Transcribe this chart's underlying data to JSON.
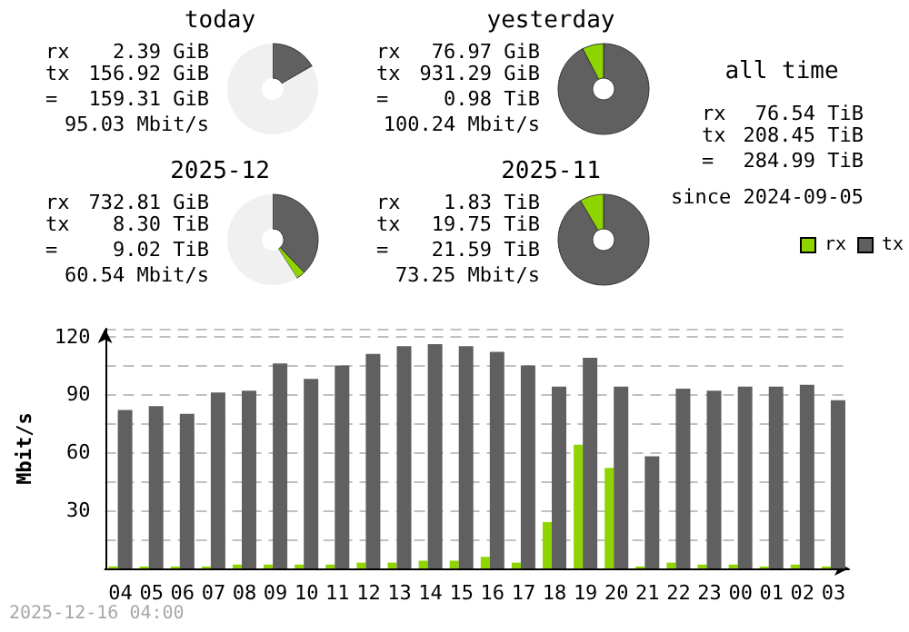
{
  "chart_data": [
    {
      "type": "donut",
      "title": "today",
      "categories": [
        null,
        null,
        null
      ],
      "values": [
        16.42,
        0.25,
        83.33
      ],
      "colors": [
        "#606060",
        "#8fd400",
        "#f0f0f0"
      ],
      "annotations": [
        "rx",
        "2.39 GiB",
        "tx",
        "156.92 GiB",
        "=",
        "159.31 GiB",
        "95.03 Mbit/s"
      ]
    },
    {
      "type": "donut",
      "title": "yesterday",
      "categories": [
        null,
        null
      ],
      "values": [
        92.4,
        7.6
      ],
      "colors": [
        "#606060",
        "#8fd400"
      ],
      "annotations": [
        "rx",
        "76.97 GiB",
        "tx",
        "931.29 GiB",
        "=",
        "0.98 TiB",
        "100.24 Mbit/s"
      ]
    },
    {
      "type": "donut",
      "title": "2025-12",
      "categories": [
        null,
        null,
        null
      ],
      "values": [
        37.8,
        3.2,
        59
      ],
      "colors": [
        "#606060",
        "#8fd400",
        "#f0f0f0"
      ],
      "annotations": [
        "rx",
        "732.81 GiB",
        "tx",
        "8.30 TiB",
        "=",
        "9.02 TiB",
        "60.54 Mbit/s"
      ]
    },
    {
      "type": "donut",
      "title": "2025-11",
      "categories": [
        null,
        null
      ],
      "values": [
        91.5,
        8.5
      ],
      "colors": [
        "#606060",
        "#8fd400"
      ],
      "annotations": [
        "rx",
        "1.83 TiB",
        "tx",
        "19.75 TiB",
        "=",
        "21.59 TiB",
        "73.25 Mbit/s"
      ]
    },
    {
      "type": "other",
      "title": "all time",
      "annotations": [
        "rx",
        "76.54 TiB",
        "tx",
        "208.45 TiB",
        "=",
        "284.99 TiB",
        "since 2024-09-05"
      ]
    },
    {
      "type": "bar",
      "ylabel": "Mbit/s",
      "categories": [
        "04",
        "05",
        "06",
        "07",
        "08",
        "09",
        "10",
        "11",
        "12",
        "13",
        "14",
        "15",
        "16",
        "17",
        "18",
        "19",
        "20",
        "21",
        "22",
        "23",
        "00",
        "01",
        "02",
        "03"
      ],
      "series": [
        {
          "name": "rx",
          "color": "#8fd400",
          "values": [
            1,
            1,
            1,
            1,
            2,
            2,
            2,
            2,
            3,
            3,
            4,
            4,
            6,
            3,
            24,
            64,
            52,
            1,
            3,
            2,
            2,
            1,
            2,
            1
          ]
        },
        {
          "name": "tx",
          "color": "#606060",
          "values": [
            82,
            84,
            80,
            91,
            92,
            106,
            98,
            105,
            111,
            115,
            116,
            115,
            112,
            105,
            94,
            109,
            94,
            58,
            93,
            92,
            94,
            94,
            95,
            87
          ]
        }
      ],
      "ylim": [
        0,
        124
      ],
      "yticks": [
        {
          "value": 0,
          "label": null
        },
        {
          "value": 15,
          "label": null
        },
        30,
        {
          "value": 45,
          "label": null
        },
        60,
        {
          "value": 75,
          "label": null
        },
        90,
        {
          "value": 105,
          "label": null
        },
        120
      ],
      "grid": "y",
      "legend": "top right",
      "annotations": [
        "2025-12-16 04:00"
      ]
    }
  ]
}
